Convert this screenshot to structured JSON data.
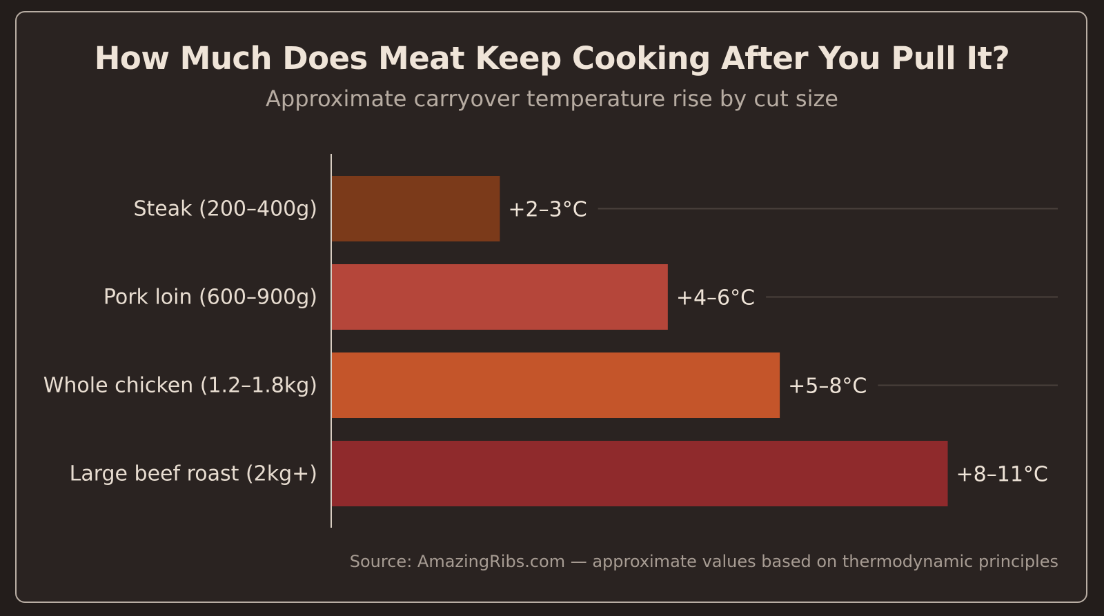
{
  "chart_data": {
    "type": "bar",
    "orientation": "horizontal",
    "title": "How Much Does Meat Keep Cooking After You Pull It?",
    "subtitle": "Approximate carryover temperature rise by cut size",
    "categories": [
      "Steak (200–400g)",
      "Pork loin (600–900g)",
      "Whole chicken (1.2–1.8kg)",
      "Large beef roast (2kg+)"
    ],
    "values": [
      3,
      6,
      8,
      11
    ],
    "value_labels": [
      "+2–3°C",
      "+4–6°C",
      "+5–8°C",
      "+8–11°C"
    ],
    "colors": [
      "#7b3a1a",
      "#b5463a",
      "#c4552a",
      "#8f2a2c"
    ],
    "xlim": [
      0,
      11.4
    ],
    "grid": false,
    "legend": "none",
    "source": "Source: AmazingRibs.com — approximate values based on thermodynamic principles"
  }
}
